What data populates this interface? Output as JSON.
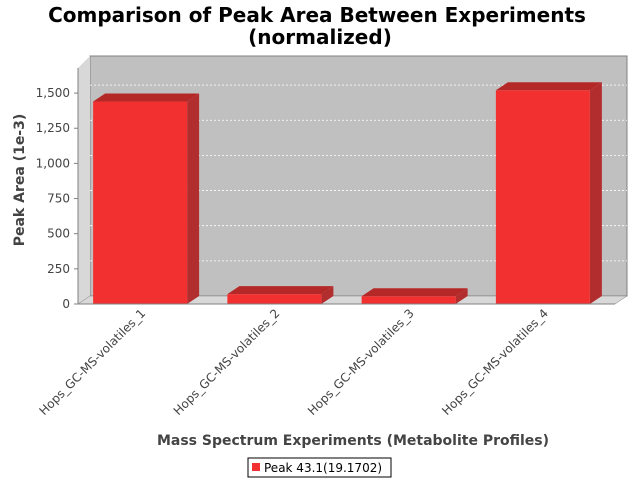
{
  "chart_data": {
    "type": "bar",
    "title_line1": "Comparison of Peak Area Between Experiments",
    "title_line2": "(normalized)",
    "xlabel": "Mass Spectrum Experiments (Metabolite Profiles)",
    "ylabel": "Peak Area (1e-3)",
    "categories": [
      "Hops_GC-MS-volatiles_1",
      "Hops_GC-MS-volatiles_2",
      "Hops_GC-MS-volatiles_3",
      "Hops_GC-MS-volatiles_4"
    ],
    "series": [
      {
        "name": "Peak 43.1(19.1702)",
        "values": [
          1440,
          70,
          55,
          1520
        ],
        "color": "#f23030"
      }
    ],
    "ylim": [
      0,
      1650
    ],
    "yticks": [
      0,
      250,
      500,
      750,
      1000,
      1250,
      1500
    ],
    "ytick_labels": [
      "0",
      "250",
      "500",
      "750",
      "1,000",
      "1,250",
      "1,500"
    ],
    "grid": true,
    "legend_position": "bottom",
    "style": "3d-bar"
  }
}
